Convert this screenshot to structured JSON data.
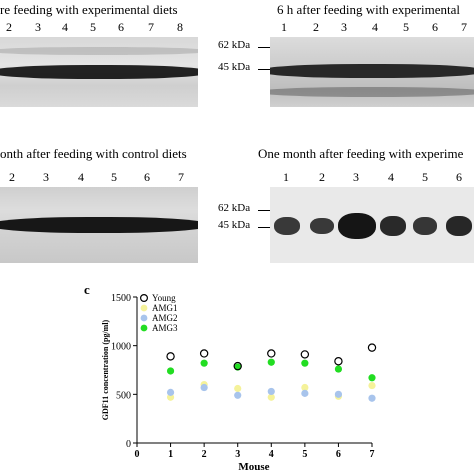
{
  "panels": {
    "top_left": {
      "title": "re feeding with experimental diets",
      "lanes": [
        "2",
        "3",
        "4",
        "5",
        "6",
        "7",
        "8"
      ]
    },
    "top_right": {
      "title": "6 h after feeding with experimental",
      "lanes": [
        "1",
        "2",
        "3",
        "4",
        "5",
        "6",
        "7"
      ]
    },
    "mid_left": {
      "title": "onth after feeding with control diets",
      "lanes": [
        "2",
        "3",
        "4",
        "5",
        "6",
        "7"
      ]
    },
    "mid_right": {
      "title": "One month after feeding with experime",
      "lanes": [
        "1",
        "2",
        "3",
        "4",
        "5",
        "6"
      ]
    },
    "markers": {
      "kda62": "62 kDa",
      "kda45": "45 kDa"
    },
    "panel_c_letter": "c"
  },
  "chart_data": {
    "type": "scatter",
    "title": "",
    "xlabel": "Mouse",
    "ylabel": "GDF11 concentration (pg/ml)",
    "x": [
      1,
      2,
      3,
      4,
      5,
      6,
      7
    ],
    "xticks": [
      "0",
      "1",
      "2",
      "3",
      "4",
      "5",
      "6",
      "7"
    ],
    "yticks": [
      "0",
      "500",
      "1000",
      "1500"
    ],
    "xlim": [
      0,
      7
    ],
    "ylim": [
      0,
      1500
    ],
    "grid": false,
    "legend_position": "top-left",
    "series": [
      {
        "name": "Young",
        "marker": "open-circle",
        "color": "#000000",
        "values": [
          890,
          920,
          790,
          920,
          910,
          840,
          980
        ]
      },
      {
        "name": "AMG1",
        "marker": "filled-circle",
        "color": "#f5f29a",
        "values": [
          470,
          600,
          560,
          470,
          570,
          480,
          590
        ]
      },
      {
        "name": "AMG2",
        "marker": "filled-circle",
        "color": "#a8c4ec",
        "values": [
          520,
          570,
          490,
          530,
          510,
          500,
          460
        ]
      },
      {
        "name": "AMG3",
        "marker": "filled-circle",
        "color": "#22dd22",
        "values": [
          740,
          820,
          780,
          830,
          820,
          760,
          670
        ]
      }
    ]
  }
}
